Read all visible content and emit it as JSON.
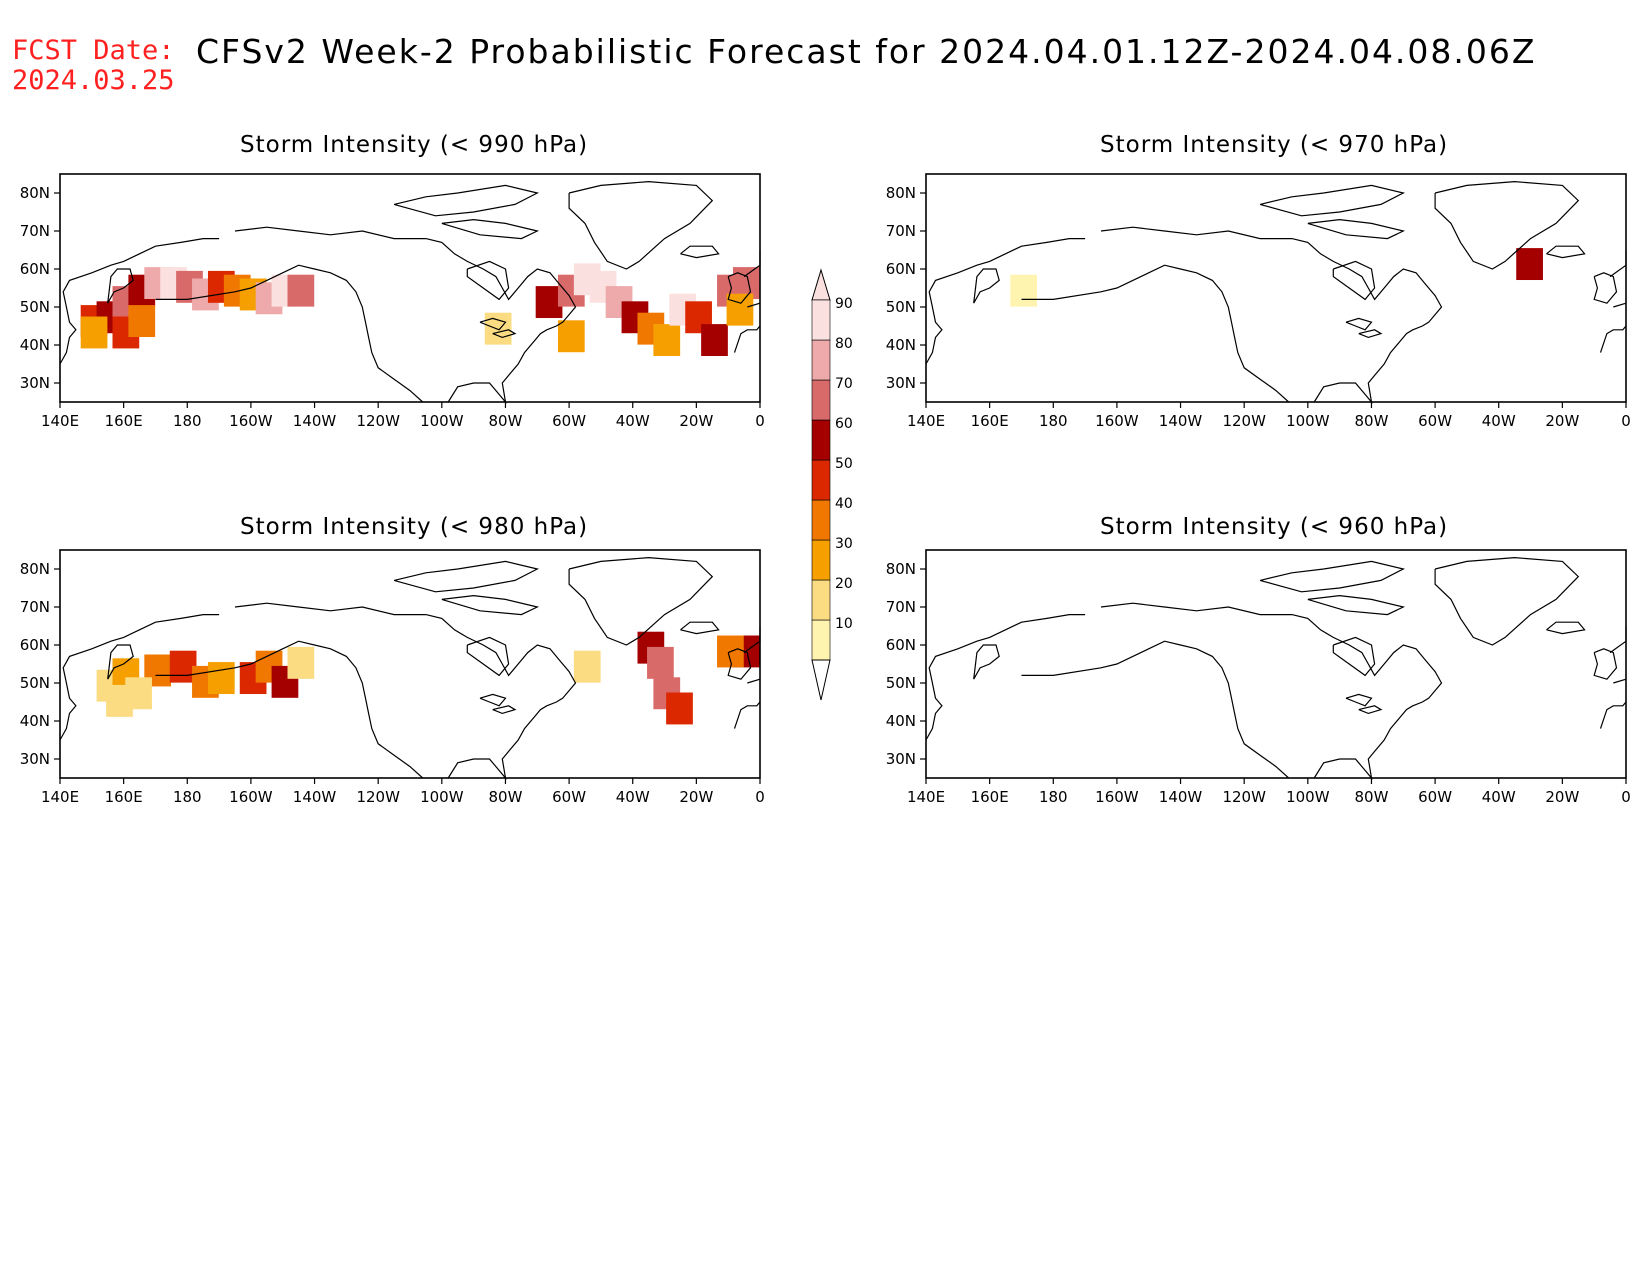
{
  "header": {
    "fcst_label": "FCST Date:",
    "fcst_date": "2024.03.25",
    "title": "CFSv2 Week-2 Probabilistic Forecast for 2024.04.01.12Z-2024.04.08.06Z"
  },
  "axes": {
    "lon_labels": [
      "140E",
      "160E",
      "180",
      "160W",
      "140W",
      "120W",
      "100W",
      "80W",
      "60W",
      "40W",
      "20W",
      "0"
    ],
    "lat_labels": [
      "80N",
      "70N",
      "60N",
      "50N",
      "40N",
      "30N"
    ],
    "lat_values": [
      80,
      70,
      60,
      50,
      40,
      30
    ],
    "lon_range": [
      140,
      360
    ],
    "lat_range": [
      25,
      85
    ]
  },
  "panels": [
    {
      "id": "p990",
      "title": "Storm Intensity (< 990 hPa)"
    },
    {
      "id": "p970",
      "title": "Storm Intensity (< 970 hPa)"
    },
    {
      "id": "p980",
      "title": "Storm Intensity (< 980 hPa)"
    },
    {
      "id": "p960",
      "title": "Storm Intensity (< 960 hPa)"
    }
  ],
  "colorbar": {
    "levels": [
      "10",
      "20",
      "30",
      "40",
      "50",
      "60",
      "70",
      "80",
      "90"
    ],
    "colors": [
      "#fff3b0",
      "#fbdc82",
      "#f5a000",
      "#f07800",
      "#dc2800",
      "#a50000",
      "#d96a6a",
      "#eeaaaa",
      "#fbe0e0"
    ]
  },
  "chart_data": [
    {
      "type": "heatmap",
      "title": "Storm Intensity (< 990 hPa)",
      "units": "probability %",
      "cells": [
        [
          150,
          47,
          50
        ],
        [
          155,
          48,
          60
        ],
        [
          160,
          52,
          70
        ],
        [
          165,
          55,
          60
        ],
        [
          170,
          57,
          80
        ],
        [
          175,
          57,
          90
        ],
        [
          180,
          56,
          70
        ],
        [
          185,
          54,
          80
        ],
        [
          190,
          56,
          50
        ],
        [
          195,
          55,
          40
        ],
        [
          200,
          54,
          30
        ],
        [
          205,
          53,
          80
        ],
        [
          210,
          55,
          90
        ],
        [
          215,
          55,
          70
        ],
        [
          160,
          44,
          50
        ],
        [
          165,
          47,
          40
        ],
        [
          150,
          44,
          30
        ],
        [
          293,
          52,
          60
        ],
        [
          300,
          55,
          70
        ],
        [
          305,
          58,
          90
        ],
        [
          310,
          56,
          90
        ],
        [
          315,
          52,
          80
        ],
        [
          320,
          48,
          60
        ],
        [
          325,
          45,
          40
        ],
        [
          330,
          42,
          30
        ],
        [
          335,
          50,
          90
        ],
        [
          340,
          48,
          50
        ],
        [
          345,
          42,
          60
        ],
        [
          350,
          55,
          70
        ],
        [
          355,
          57,
          70
        ],
        [
          353,
          50,
          30
        ],
        [
          277,
          45,
          20
        ],
        [
          300,
          43,
          30
        ]
      ]
    },
    {
      "type": "heatmap",
      "title": "Storm Intensity (< 970 hPa)",
      "units": "probability %",
      "cells": [
        [
          329,
          62,
          60
        ],
        [
          170,
          55,
          10
        ]
      ]
    },
    {
      "type": "heatmap",
      "title": "Storm Intensity (< 980 hPa)",
      "units": "probability %",
      "cells": [
        [
          155,
          50,
          20
        ],
        [
          160,
          53,
          30
        ],
        [
          170,
          54,
          40
        ],
        [
          178,
          55,
          50
        ],
        [
          185,
          51,
          40
        ],
        [
          190,
          52,
          30
        ],
        [
          200,
          52,
          50
        ],
        [
          205,
          55,
          40
        ],
        [
          210,
          51,
          60
        ],
        [
          158,
          46,
          20
        ],
        [
          164,
          48,
          20
        ],
        [
          215,
          56,
          20
        ],
        [
          305,
          55,
          20
        ],
        [
          325,
          60,
          60
        ],
        [
          328,
          56,
          70
        ],
        [
          330,
          48,
          70
        ],
        [
          334,
          44,
          50
        ],
        [
          355,
          59,
          60
        ],
        [
          350,
          59,
          40
        ]
      ]
    },
    {
      "type": "heatmap",
      "title": "Storm Intensity (< 960 hPa)",
      "units": "probability %",
      "cells": []
    }
  ]
}
